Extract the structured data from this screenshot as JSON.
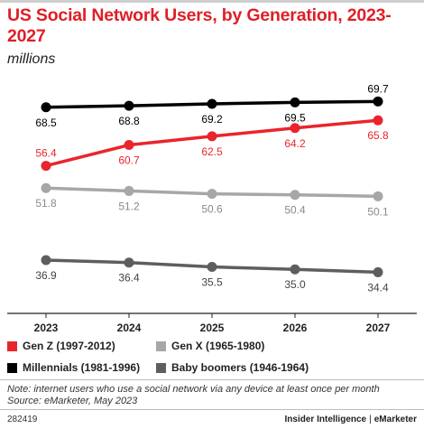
{
  "header": {
    "title": "US Social Network Users, by Generation, 2023-2027",
    "subtitle": "millions"
  },
  "chart_data": {
    "type": "line",
    "title": "US Social Network Users, by Generation, 2023-2027",
    "subtitle": "millions",
    "xlabel": "",
    "ylabel": "",
    "x": [
      "2023",
      "2024",
      "2025",
      "2026",
      "2027"
    ],
    "ylim": [
      30,
      72
    ],
    "grid": false,
    "legend_position": "bottom",
    "series": [
      {
        "name": "Millennials (1981-1996)",
        "color": "#000000",
        "values": [
          68.5,
          68.8,
          69.2,
          69.5,
          69.7
        ],
        "labels": [
          "68.5",
          "68.8",
          "69.2",
          "69.5",
          "69.7"
        ]
      },
      {
        "name": "Gen Z (1997-2012)",
        "color": "#e8252d",
        "values": [
          56.4,
          60.7,
          62.5,
          64.2,
          65.8
        ],
        "labels": [
          "56.4",
          "60.7",
          "62.5",
          "64.2",
          "65.8"
        ]
      },
      {
        "name": "Gen X (1965-1980)",
        "color": "#a7a7a7",
        "values": [
          51.8,
          51.2,
          50.6,
          50.4,
          50.1
        ],
        "labels": [
          "51.8",
          "51.2",
          "50.6",
          "50.4",
          "50.1"
        ]
      },
      {
        "name": "Baby boomers (1946-1964)",
        "color": "#5e5e5e",
        "values": [
          36.9,
          36.4,
          35.5,
          35.0,
          34.4
        ],
        "labels": [
          "36.9",
          "36.4",
          "35.5",
          "35.0",
          "34.4"
        ]
      }
    ]
  },
  "legend": {
    "gen_z": "Gen Z (1997-2012)",
    "gen_x": "Gen X (1965-1980)",
    "millennials": "Millennials (1981-1996)",
    "boomers": "Baby boomers (1946-1964)"
  },
  "colors": {
    "gen_z": "#e8252d",
    "gen_x": "#a7a7a7",
    "millennials": "#000000",
    "boomers": "#5e5e5e",
    "title": "#e01e26"
  },
  "notes": {
    "note": "Note: internet users who use a social network via any device at least once per month",
    "source": "Source: eMarketer, May 2023"
  },
  "footer": {
    "chart_id": "282419",
    "brand_left": "Insider Intelligence",
    "brand_sep": "|",
    "brand_right": "eMarketer"
  }
}
